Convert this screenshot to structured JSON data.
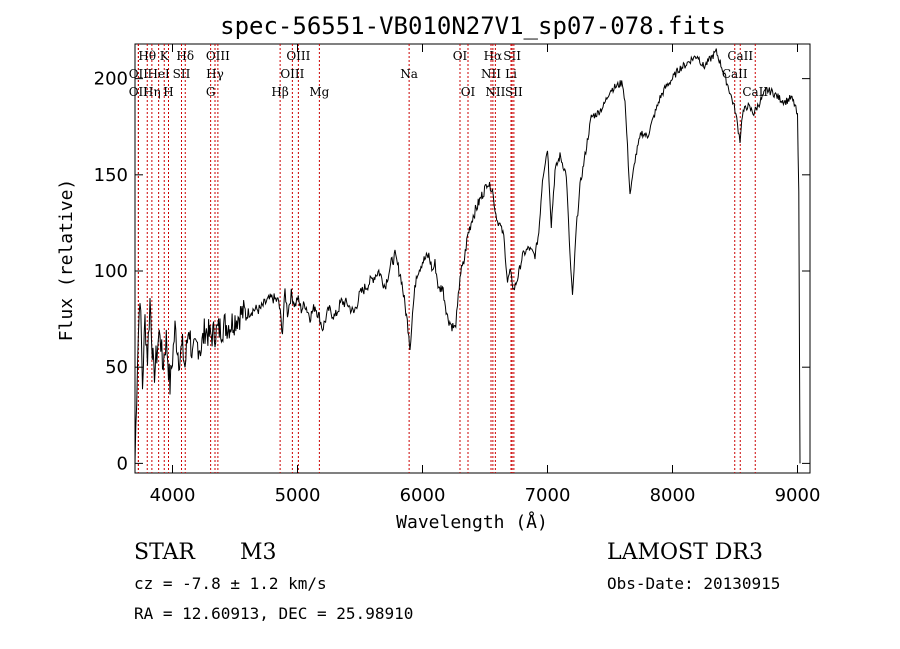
{
  "chart_data": {
    "type": "line",
    "title": "spec-56551-VB010N27V1_sp07-078.fits",
    "xlabel": "Wavelength (Å)",
    "ylabel": "Flux (relative)",
    "xlim": [
      3700,
      9100
    ],
    "ylim": [
      -5,
      218
    ],
    "x_ticks": [
      4000,
      5000,
      6000,
      7000,
      8000,
      9000
    ],
    "y_ticks": [
      0,
      50,
      100,
      150,
      200
    ],
    "grid": false,
    "line_color": "#000000",
    "marker_color": "#cc0000",
    "series": [
      {
        "name": "flux",
        "x": [
          3700,
          3720,
          3740,
          3760,
          3780,
          3800,
          3820,
          3850,
          3880,
          3900,
          3920,
          3950,
          3980,
          4000,
          4020,
          4050,
          4080,
          4100,
          4130,
          4160,
          4200,
          4230,
          4260,
          4300,
          4340,
          4380,
          4420,
          4460,
          4500,
          4550,
          4600,
          4650,
          4700,
          4750,
          4800,
          4850,
          4880,
          4900,
          4920,
          4950,
          4980,
          5000,
          5030,
          5060,
          5100,
          5140,
          5180,
          5200,
          5250,
          5300,
          5350,
          5400,
          5450,
          5500,
          5550,
          5600,
          5650,
          5700,
          5750,
          5780,
          5800,
          5830,
          5860,
          5890,
          5900,
          5920,
          5950,
          6000,
          6050,
          6080,
          6100,
          6130,
          6160,
          6200,
          6230,
          6260,
          6280,
          6300,
          6330,
          6360,
          6400,
          6440,
          6480,
          6520,
          6560,
          6580,
          6600,
          6620,
          6650,
          6680,
          6700,
          6730,
          6760,
          6800,
          6850,
          6900,
          6930,
          6960,
          7000,
          7030,
          7060,
          7100,
          7150,
          7180,
          7200,
          7230,
          7260,
          7300,
          7350,
          7400,
          7450,
          7500,
          7550,
          7600,
          7620,
          7640,
          7660,
          7680,
          7700,
          7750,
          7800,
          7850,
          7900,
          7950,
          8000,
          8050,
          8100,
          8150,
          8200,
          8250,
          8300,
          8350,
          8400,
          8450,
          8500,
          8520,
          8540,
          8560,
          8600,
          8650,
          8700,
          8750,
          8800,
          8850,
          8900,
          8950,
          8980,
          9000,
          9010,
          9020
        ],
        "y": [
          0,
          55,
          90,
          40,
          75,
          55,
          85,
          45,
          60,
          70,
          50,
          65,
          40,
          55,
          70,
          55,
          60,
          50,
          72,
          55,
          62,
          60,
          70,
          66,
          68,
          70,
          72,
          72,
          75,
          78,
          78,
          80,
          80,
          84,
          86,
          84,
          68,
          90,
          78,
          88,
          82,
          86,
          80,
          83,
          76,
          82,
          75,
          70,
          80,
          76,
          84,
          83,
          78,
          88,
          92,
          96,
          100,
          92,
          104,
          108,
          103,
          96,
          82,
          68,
          60,
          78,
          98,
          105,
          108,
          100,
          104,
          90,
          92,
          76,
          72,
          70,
          80,
          98,
          104,
          118,
          128,
          134,
          140,
          146,
          142,
          132,
          126,
          124,
          118,
          94,
          100,
          90,
          96,
          108,
          112,
          108,
          120,
          148,
          164,
          124,
          152,
          160,
          150,
          108,
          86,
          122,
          144,
          160,
          180,
          182,
          186,
          194,
          196,
          198,
          188,
          164,
          140,
          148,
          158,
          172,
          170,
          180,
          190,
          196,
          200,
          205,
          207,
          210,
          212,
          206,
          210,
          214,
          205,
          195,
          184,
          176,
          168,
          182,
          186,
          182,
          188,
          194,
          193,
          190,
          188,
          190,
          186,
          180,
          140,
          0
        ]
      }
    ],
    "line_markers": [
      {
        "label": "Hθ",
        "wavelength": 3798,
        "row": 0
      },
      {
        "label": "OII",
        "wavelength": 3727,
        "row": 1
      },
      {
        "label": "OII",
        "wavelength": 3727,
        "row": 2
      },
      {
        "label": "Hη",
        "wavelength": 3835,
        "row": 2
      },
      {
        "label": "K",
        "wavelength": 3934,
        "row": 0
      },
      {
        "label": "HeI",
        "wavelength": 3889,
        "row": 1
      },
      {
        "label": "H",
        "wavelength": 3968,
        "row": 2
      },
      {
        "label": "Hδ",
        "wavelength": 4102,
        "row": 0
      },
      {
        "label": "SII",
        "wavelength": 4072,
        "row": 1
      },
      {
        "label": "OIII",
        "wavelength": 4363,
        "row": 0
      },
      {
        "label": "Hγ",
        "wavelength": 4340,
        "row": 1
      },
      {
        "label": "G",
        "wavelength": 4305,
        "row": 2
      },
      {
        "label": "Hβ",
        "wavelength": 4861,
        "row": 2
      },
      {
        "label": "OIII",
        "wavelength": 5007,
        "row": 0
      },
      {
        "label": "OIII",
        "wavelength": 4959,
        "row": 1
      },
      {
        "label": "Mg",
        "wavelength": 5175,
        "row": 2
      },
      {
        "label": "Na",
        "wavelength": 5893,
        "row": 1
      },
      {
        "label": "OI",
        "wavelength": 6300,
        "row": 0
      },
      {
        "label": "OI",
        "wavelength": 6364,
        "row": 2
      },
      {
        "label": "Hα",
        "wavelength": 6563,
        "row": 0
      },
      {
        "label": "NII",
        "wavelength": 6548,
        "row": 1
      },
      {
        "label": "NII",
        "wavelength": 6583,
        "row": 2
      },
      {
        "label": "SII",
        "wavelength": 6717,
        "row": 0
      },
      {
        "label": "Li",
        "wavelength": 6708,
        "row": 1
      },
      {
        "label": "SII",
        "wavelength": 6731,
        "row": 2
      },
      {
        "label": "CaII",
        "wavelength": 8542,
        "row": 0
      },
      {
        "label": "CaII",
        "wavelength": 8498,
        "row": 1
      },
      {
        "label": "CaII",
        "wavelength": 8662,
        "row": 2
      }
    ]
  },
  "info": {
    "object_class": "STAR",
    "subclass": "M3",
    "survey": "LAMOST DR3",
    "cz": "cz = -7.8 ± 1.2 km/s",
    "obs_date": "Obs-Date: 20130915",
    "coords": "RA =  12.60913, DEC =  25.98910"
  }
}
